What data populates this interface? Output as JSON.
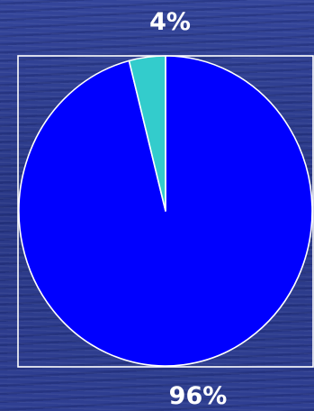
{
  "chart_data": {
    "type": "pie",
    "title": "",
    "slices": [
      {
        "value": 96,
        "label": "96%",
        "color": "#0000ff"
      },
      {
        "value": 4,
        "label": "4%",
        "color": "#33cccc"
      }
    ],
    "start_angle_deg": 0,
    "direction": "clockwise",
    "plot_frame": true,
    "border_color": "#ffffff",
    "legend": "none"
  }
}
